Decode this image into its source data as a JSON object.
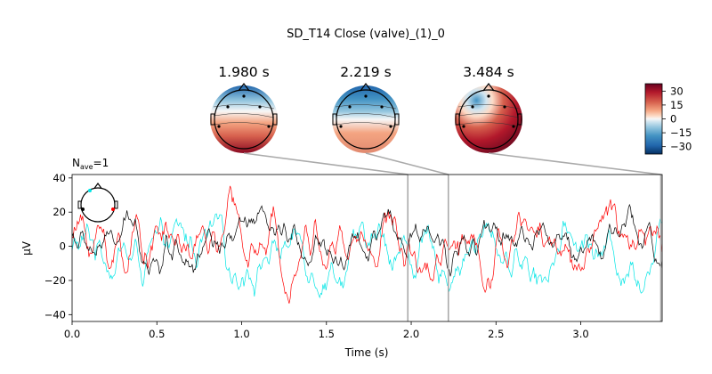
{
  "chart_data": {
    "type": "line",
    "title": "SD_T14 Close (valve)_(1)_0",
    "nave": {
      "prefix": "N",
      "sub": "ave",
      "suffix": "=1"
    },
    "xlabel": "Time (s)",
    "ylabel": "µV",
    "xlim": [
      0.0,
      3.48
    ],
    "ylim": [
      -44,
      42
    ],
    "xticks": [
      0.0,
      0.5,
      1.0,
      1.5,
      2.0,
      2.5,
      3.0
    ],
    "xtick_labels": [
      "0.0",
      "0.5",
      "1.0",
      "1.5",
      "2.0",
      "2.5",
      "3.0"
    ],
    "yticks": [
      -40,
      -20,
      0,
      20,
      40
    ],
    "ytick_labels": [
      "−40",
      "−20",
      "0",
      "20",
      "40"
    ],
    "grid": false,
    "series": [
      {
        "color": "#00e5e5",
        "mean": -4,
        "amp": 11
      },
      {
        "color": "#ff0000",
        "mean": 3,
        "amp": 12
      },
      {
        "color": "#000000",
        "mean": 2,
        "amp": 9
      }
    ],
    "topomaps": [
      {
        "time": 1.98,
        "label": "1.980 s"
      },
      {
        "time": 2.219,
        "label": "2.219 s"
      },
      {
        "time": 3.484,
        "label": "3.484 s"
      }
    ],
    "colorbar": {
      "range": [
        -38,
        38
      ],
      "ticks": [
        30,
        15,
        0,
        -15,
        -30
      ],
      "tick_labels": [
        "30",
        "15",
        "0",
        "−15",
        "−30"
      ]
    },
    "colors": {
      "cyan": "#00e5e5",
      "red": "#ff0000",
      "black": "#000000",
      "connector": "#aaaaaa"
    }
  }
}
